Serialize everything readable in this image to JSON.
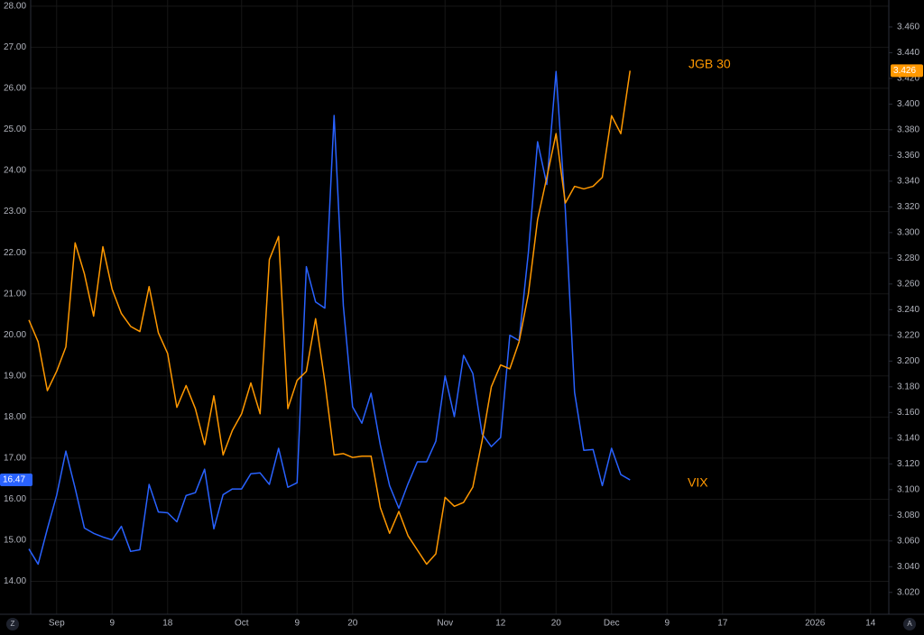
{
  "chart_data": {
    "type": "line",
    "categories": [
      null,
      null,
      null,
      "Sep",
      null,
      null,
      null,
      null,
      null,
      "9",
      null,
      null,
      null,
      null,
      null,
      "18",
      null,
      null,
      null,
      null,
      null,
      null,
      null,
      "Oct",
      null,
      null,
      null,
      null,
      null,
      "9",
      null,
      null,
      null,
      null,
      null,
      "20",
      null,
      null,
      null,
      null,
      null,
      null,
      null,
      null,
      null,
      "Nov",
      null,
      null,
      null,
      null,
      null,
      "12",
      null,
      null,
      null,
      null,
      null,
      "20",
      null,
      null,
      null,
      null,
      null,
      "Dec",
      null,
      null,
      null,
      null,
      null,
      "9",
      null,
      null,
      null,
      null,
      null,
      "17",
      null,
      null,
      null,
      null,
      null,
      null,
      null,
      null,
      null,
      "2026",
      null,
      null,
      null,
      null,
      null,
      "14",
      null,
      null
    ],
    "series": [
      {
        "name": "VIX",
        "color": "#2962ff",
        "label_color": "#ff9800",
        "axis": "y",
        "values": [
          14.79,
          14.42,
          15.28,
          16.09,
          17.17,
          16.27,
          15.3,
          15.17,
          15.08,
          15.01,
          15.34,
          14.73,
          14.77,
          16.36,
          15.69,
          15.67,
          15.45,
          16.09,
          16.16,
          16.73,
          15.28,
          16.11,
          16.25,
          16.25,
          16.62,
          16.64,
          16.36,
          17.24,
          16.29,
          16.4,
          21.66,
          20.8,
          20.65,
          25.34,
          20.71,
          18.25,
          17.85,
          18.58,
          17.32,
          16.33,
          15.78,
          16.38,
          16.91,
          16.91,
          17.41,
          19.0,
          18.01,
          19.5,
          19.06,
          17.59,
          17.28,
          17.5,
          19.99,
          19.86,
          21.99,
          24.7,
          23.66,
          26.41,
          23.05,
          18.6,
          17.19,
          17.21,
          16.33,
          17.24,
          16.6,
          16.47,
          null,
          null,
          null,
          null,
          null,
          null,
          null,
          null,
          null,
          null,
          null,
          null,
          null,
          null,
          null,
          null,
          null,
          null,
          null,
          null,
          null,
          null,
          null,
          null,
          null,
          null,
          null,
          null
        ],
        "value_labels": [
          null,
          null,
          null,
          null,
          null,
          null,
          null,
          null,
          null,
          null,
          null,
          null,
          null,
          null,
          null,
          null,
          null,
          null,
          null,
          null,
          null,
          null,
          null,
          null,
          null,
          null,
          null,
          null,
          null,
          null,
          null,
          null,
          null,
          null,
          null,
          null,
          null,
          null,
          null,
          null,
          null,
          null,
          null,
          null,
          null,
          null,
          null,
          null,
          null,
          null,
          null,
          null,
          null,
          null,
          null,
          null,
          null,
          null,
          null,
          null,
          null,
          null,
          null,
          null,
          null,
          "16.47",
          null,
          null,
          null,
          null,
          null,
          null,
          null,
          null,
          null,
          null,
          null,
          null,
          null,
          null,
          null,
          null,
          null,
          null,
          null,
          null,
          null,
          null,
          null,
          null,
          null,
          null,
          null,
          null
        ]
      },
      {
        "name": "JGB 30",
        "color": "#ff9800",
        "label_color": "#ff9800",
        "axis": "y2",
        "values": [
          3.232,
          3.215,
          3.177,
          3.192,
          3.211,
          3.292,
          3.268,
          3.235,
          3.289,
          3.256,
          3.237,
          3.227,
          3.223,
          3.258,
          3.222,
          3.206,
          3.164,
          3.181,
          3.163,
          3.135,
          3.173,
          3.127,
          3.146,
          3.159,
          3.183,
          3.159,
          3.279,
          3.297,
          3.163,
          3.185,
          3.192,
          3.233,
          3.184,
          3.127,
          3.128,
          3.125,
          3.126,
          3.126,
          3.086,
          3.066,
          3.083,
          3.064,
          3.053,
          3.042,
          3.05,
          3.094,
          3.087,
          3.09,
          3.102,
          3.138,
          3.18,
          3.197,
          3.194,
          3.215,
          3.252,
          3.31,
          3.343,
          3.377,
          3.323,
          3.336,
          3.334,
          3.336,
          3.343,
          3.391,
          3.377,
          3.426,
          null,
          null,
          null,
          null,
          null,
          null,
          null,
          null,
          null,
          null,
          null,
          null,
          null,
          null,
          null,
          null,
          null,
          null,
          null,
          null,
          null,
          null,
          null,
          null,
          null,
          null,
          null,
          null
        ],
        "value_labels": [
          null,
          null,
          null,
          null,
          null,
          null,
          null,
          null,
          null,
          null,
          null,
          null,
          null,
          null,
          null,
          null,
          null,
          null,
          null,
          null,
          null,
          null,
          null,
          null,
          null,
          null,
          null,
          null,
          null,
          null,
          null,
          null,
          null,
          null,
          null,
          null,
          null,
          null,
          null,
          null,
          null,
          null,
          null,
          null,
          null,
          null,
          null,
          null,
          null,
          null,
          null,
          null,
          null,
          null,
          null,
          null,
          null,
          null,
          null,
          null,
          null,
          null,
          null,
          null,
          null,
          "3.426",
          null,
          null,
          null,
          null,
          null,
          null,
          null,
          null,
          null,
          null,
          null,
          null,
          null,
          null,
          null,
          null,
          null,
          null,
          null,
          null,
          null,
          null,
          null,
          null,
          null,
          null,
          null,
          null
        ]
      }
    ],
    "ylim": [
      13.2,
      28.15
    ],
    "yticks": [
      {
        "value": 14,
        "label": "14.00"
      },
      {
        "value": 15,
        "label": "15.00"
      },
      {
        "value": 16,
        "label": "16.00"
      },
      {
        "value": 17,
        "label": "17.00"
      },
      {
        "value": 18,
        "label": "18.00"
      },
      {
        "value": 19,
        "label": "19.00"
      },
      {
        "value": 20,
        "label": "20.00"
      },
      {
        "value": 21,
        "label": "21.00"
      },
      {
        "value": 22,
        "label": "22.00"
      },
      {
        "value": 23,
        "label": "23.00"
      },
      {
        "value": 24,
        "label": "24.00"
      },
      {
        "value": 25,
        "label": "25.00"
      },
      {
        "value": 26,
        "label": "26.00"
      },
      {
        "value": 27,
        "label": "27.00"
      },
      {
        "value": 28,
        "label": "28.00"
      }
    ],
    "y2lim": [
      3.003,
      3.481
    ],
    "y2ticks": [
      {
        "value": 3.02,
        "label": "3.020"
      },
      {
        "value": 3.04,
        "label": "3.040"
      },
      {
        "value": 3.06,
        "label": "3.060"
      },
      {
        "value": 3.08,
        "label": "3.080"
      },
      {
        "value": 3.1,
        "label": "3.100"
      },
      {
        "value": 3.12,
        "label": "3.120"
      },
      {
        "value": 3.14,
        "label": "3.140"
      },
      {
        "value": 3.16,
        "label": "3.160"
      },
      {
        "value": 3.18,
        "label": "3.180"
      },
      {
        "value": 3.2,
        "label": "3.200"
      },
      {
        "value": 3.22,
        "label": "3.220"
      },
      {
        "value": 3.24,
        "label": "3.240"
      },
      {
        "value": 3.26,
        "label": "3.260"
      },
      {
        "value": 3.28,
        "label": "3.280"
      },
      {
        "value": 3.3,
        "label": "3.300"
      },
      {
        "value": 3.32,
        "label": "3.320"
      },
      {
        "value": 3.34,
        "label": "3.340"
      },
      {
        "value": 3.36,
        "label": "3.360"
      },
      {
        "value": 3.38,
        "label": "3.380"
      },
      {
        "value": 3.4,
        "label": "3.400"
      },
      {
        "value": 3.42,
        "label": "3.420"
      },
      {
        "value": 3.44,
        "label": "3.440"
      },
      {
        "value": 3.46,
        "label": "3.460"
      }
    ],
    "grid": true,
    "scale_buttons": [
      "Z",
      "A"
    ]
  }
}
